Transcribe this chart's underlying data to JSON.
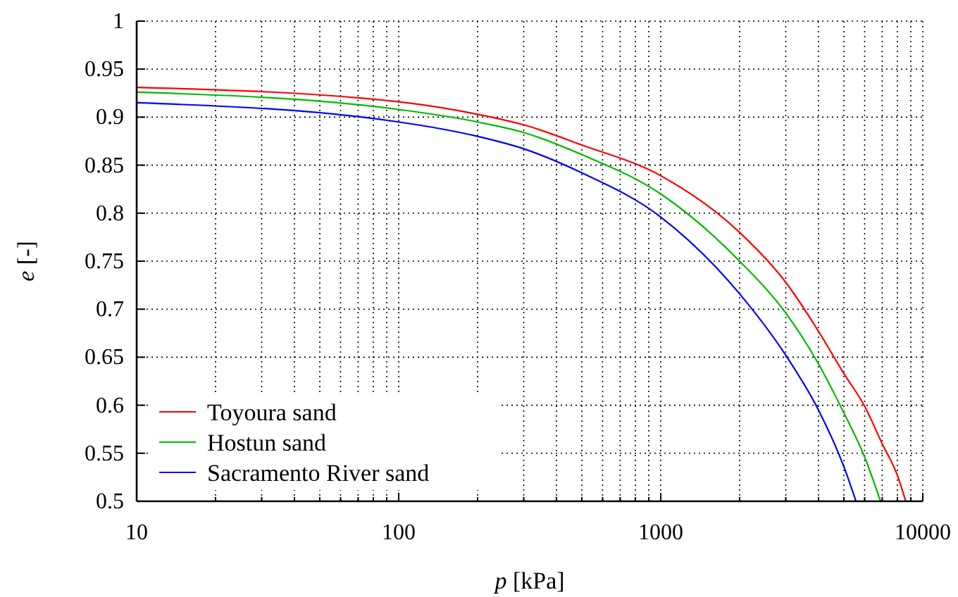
{
  "chart_data": {
    "type": "line",
    "xlabel": "p [kPa]",
    "ylabel": "e [-]",
    "log": "x",
    "xlim": [
      10,
      10000
    ],
    "ylim": [
      0.5,
      1
    ],
    "xticks": [
      10,
      {
        "value": 20,
        "label": null
      },
      {
        "value": 30,
        "label": null
      },
      {
        "value": 40,
        "label": null
      },
      {
        "value": 50,
        "label": null
      },
      {
        "value": 60,
        "label": null
      },
      {
        "value": 70,
        "label": null
      },
      {
        "value": 80,
        "label": null
      },
      {
        "value": 90,
        "label": null
      },
      100,
      {
        "value": 200,
        "label": null
      },
      {
        "value": 300,
        "label": null
      },
      {
        "value": 400,
        "label": null
      },
      {
        "value": 500,
        "label": null
      },
      {
        "value": 600,
        "label": null
      },
      {
        "value": 700,
        "label": null
      },
      {
        "value": 800,
        "label": null
      },
      {
        "value": 900,
        "label": null
      },
      1000,
      {
        "value": 2000,
        "label": null
      },
      {
        "value": 3000,
        "label": null
      },
      {
        "value": 4000,
        "label": null
      },
      {
        "value": 5000,
        "label": null
      },
      {
        "value": 6000,
        "label": null
      },
      {
        "value": 7000,
        "label": null
      },
      {
        "value": 8000,
        "label": null
      },
      {
        "value": 9000,
        "label": null
      },
      10000
    ],
    "yticks": [
      0.5,
      0.55,
      0.6,
      0.65,
      0.7,
      0.75,
      0.8,
      0.85,
      0.9,
      0.95,
      1
    ],
    "grid": true,
    "legend": "bottom left",
    "marker": "none",
    "line_style": "solid",
    "series": [
      {
        "name": "Toyoura sand",
        "color": "#ff0000",
        "x": [
          10,
          100,
          200,
          300,
          500,
          1000,
          2000,
          3000,
          4000,
          5000,
          6000,
          7000,
          8000,
          8610
        ],
        "values": [
          0.931,
          0.916,
          0.903,
          0.892,
          0.871,
          0.839,
          0.78,
          0.728,
          0.677,
          0.633,
          0.599,
          0.56,
          0.527,
          0.5
        ]
      },
      {
        "name": "Hostun sand",
        "color": "#00bb00",
        "x": [
          10,
          100,
          200,
          300,
          500,
          1000,
          2000,
          3000,
          4000,
          5000,
          6000,
          6900
        ],
        "values": [
          0.926,
          0.908,
          0.895,
          0.884,
          0.861,
          0.82,
          0.75,
          0.696,
          0.643,
          0.592,
          0.546,
          0.5
        ]
      },
      {
        "name": "Sacramento River sand",
        "color": "#0000ff",
        "x": [
          10,
          100,
          200,
          300,
          500,
          1000,
          2000,
          3000,
          4000,
          5000,
          5560
        ],
        "values": [
          0.915,
          0.895,
          0.88,
          0.867,
          0.842,
          0.796,
          0.716,
          0.652,
          0.595,
          0.536,
          0.5
        ]
      }
    ]
  }
}
